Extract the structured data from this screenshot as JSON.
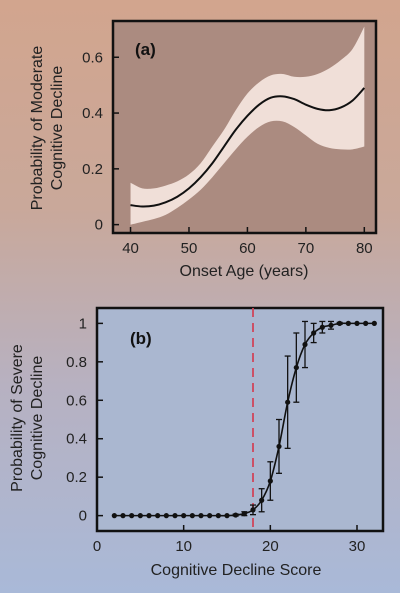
{
  "chart_data": [
    {
      "type": "line",
      "panel_label": "(a)",
      "xlabel": "Onset Age (years)",
      "ylabel": [
        "Probability of Moderate",
        "Cognitive Decline"
      ],
      "xlim": [
        37,
        82
      ],
      "ylim": [
        -0.03,
        0.73
      ],
      "xticks": [
        40,
        50,
        60,
        70,
        80
      ],
      "yticks": [
        0,
        0.2,
        0.4,
        0.6
      ],
      "ytick_labels": [
        "0",
        "0.2",
        "0.4",
        "0.6"
      ],
      "xtick_labels": [
        "40",
        "50",
        "60",
        "70",
        "80"
      ],
      "line_color": "#111111",
      "band_color": "#f0dfd8",
      "series": [
        {
          "x": [
            40,
            42,
            44,
            46,
            48,
            50,
            52,
            54,
            56,
            58,
            60,
            62,
            64,
            66,
            68,
            70,
            72,
            74,
            76,
            78,
            80
          ],
          "y": [
            0.07,
            0.065,
            0.068,
            0.08,
            0.1,
            0.13,
            0.17,
            0.22,
            0.28,
            0.34,
            0.39,
            0.43,
            0.455,
            0.46,
            0.45,
            0.43,
            0.415,
            0.41,
            0.42,
            0.445,
            0.49
          ],
          "lower": [
            0.0,
            0.01,
            0.02,
            0.035,
            0.06,
            0.09,
            0.125,
            0.17,
            0.22,
            0.27,
            0.315,
            0.35,
            0.37,
            0.37,
            0.35,
            0.32,
            0.29,
            0.275,
            0.27,
            0.27,
            0.28
          ],
          "upper": [
            0.15,
            0.13,
            0.13,
            0.14,
            0.155,
            0.18,
            0.22,
            0.28,
            0.34,
            0.41,
            0.47,
            0.51,
            0.535,
            0.54,
            0.53,
            0.53,
            0.54,
            0.56,
            0.59,
            0.63,
            0.71
          ]
        }
      ]
    },
    {
      "type": "line",
      "panel_label": "(b)",
      "xlabel": "Cognitive Decline Score",
      "ylabel": [
        "Probability of Severe",
        "Cognitive Decline"
      ],
      "xlim": [
        0,
        33
      ],
      "ylim": [
        -0.08,
        1.08
      ],
      "xticks": [
        0,
        10,
        20,
        30
      ],
      "yticks": [
        0,
        0.2,
        0.4,
        0.6,
        0.8,
        1
      ],
      "xtick_labels": [
        "0",
        "10",
        "20",
        "30"
      ],
      "ytick_labels": [
        "0",
        "0.2",
        "0.4",
        "0.6",
        "0.8",
        "1"
      ],
      "line_color": "#111111",
      "threshold": {
        "x": 18,
        "color": "#d0455a"
      },
      "series": [
        {
          "x": [
            2,
            3,
            4,
            5,
            6,
            7,
            8,
            9,
            10,
            11,
            12,
            13,
            14,
            15,
            16,
            17,
            18,
            19,
            20,
            21,
            22,
            23,
            24,
            25,
            26,
            27,
            28,
            29,
            30,
            31,
            32
          ],
          "y": [
            0,
            0,
            0,
            0,
            0,
            0,
            0,
            0,
            0,
            0,
            0,
            0,
            0,
            0,
            0.003,
            0.01,
            0.03,
            0.08,
            0.18,
            0.36,
            0.59,
            0.77,
            0.89,
            0.95,
            0.98,
            0.99,
            1.0,
            1.0,
            1.0,
            1.0,
            1.0
          ],
          "err": [
            0,
            0,
            0,
            0,
            0,
            0,
            0,
            0,
            0,
            0,
            0,
            0,
            0,
            0,
            0.005,
            0.01,
            0.025,
            0.06,
            0.1,
            0.14,
            0.24,
            0.18,
            0.12,
            0.05,
            0.03,
            0.02,
            0.005,
            0,
            0,
            0,
            0
          ]
        }
      ]
    }
  ]
}
